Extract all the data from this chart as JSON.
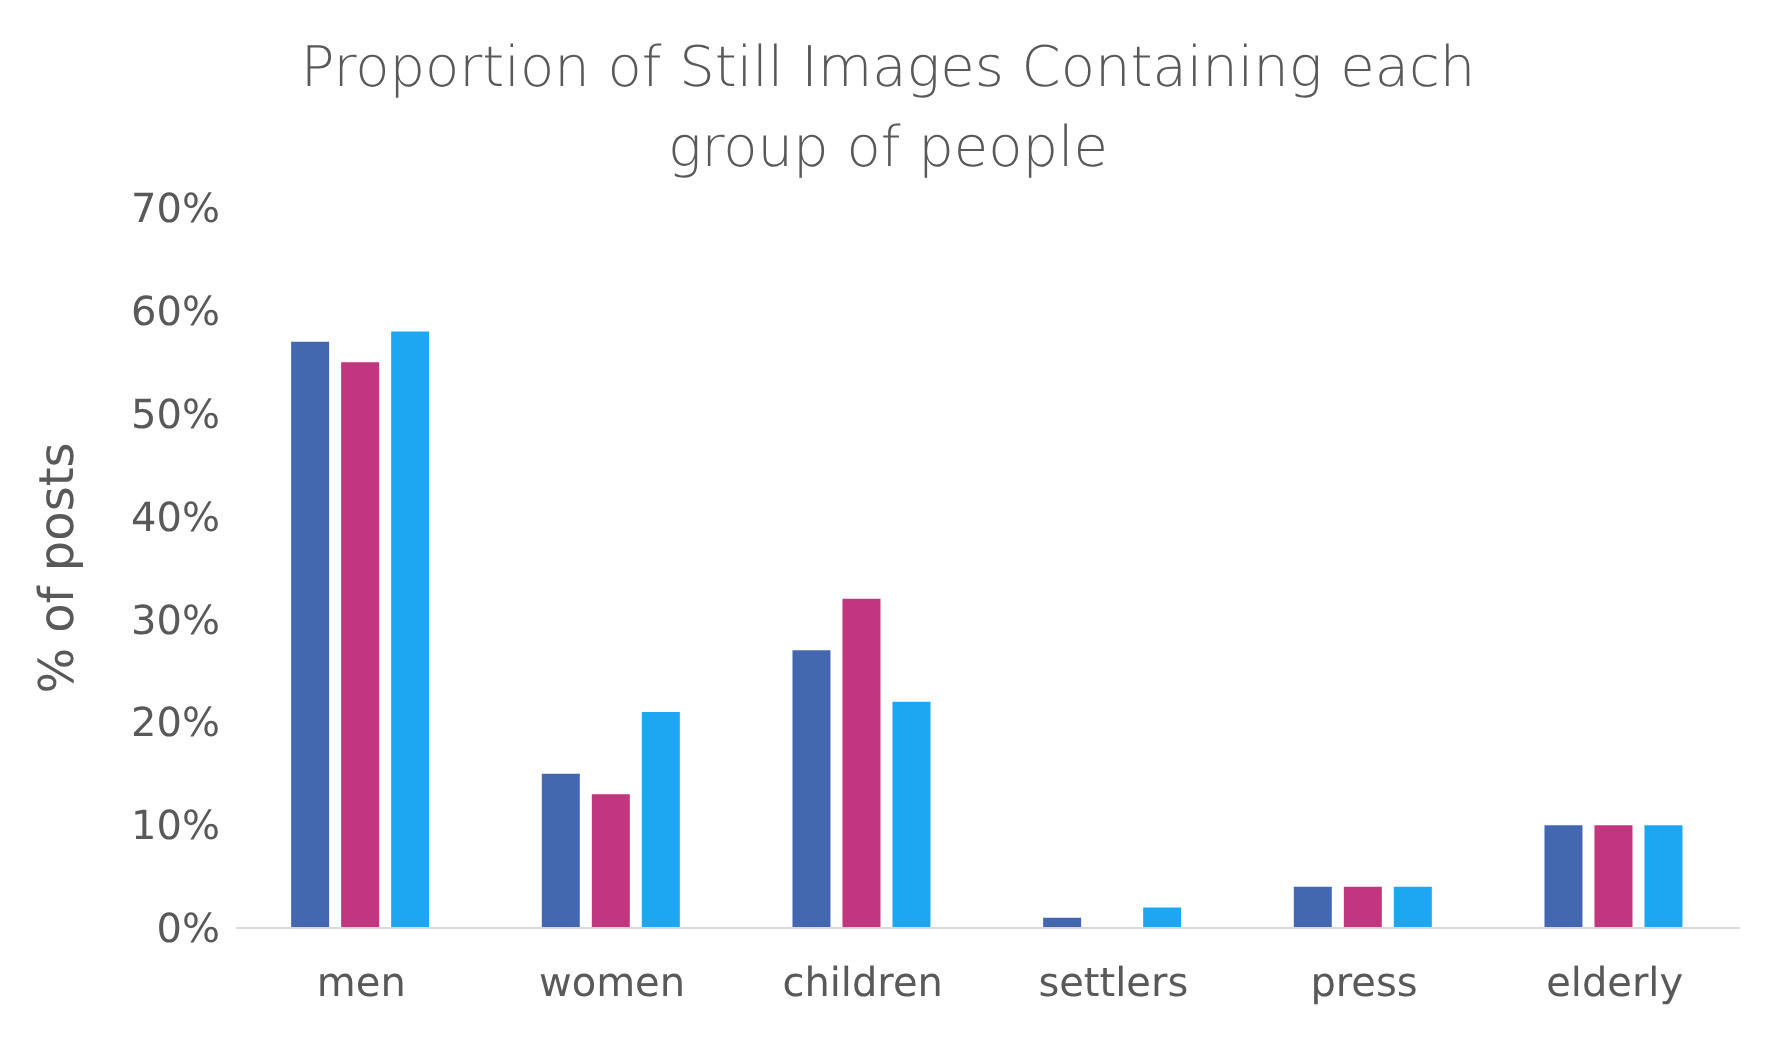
{
  "chart_data": {
    "type": "bar",
    "title": "Proportion of Still Images Containing each group of people",
    "ylabel": "% of posts",
    "categories": [
      "men",
      "women",
      "children",
      "settlers",
      "press",
      "elderly"
    ],
    "series": [
      {
        "color": "#4468b0",
        "values": [
          57,
          15,
          27,
          1,
          4,
          10
        ]
      },
      {
        "color": "#c2357f",
        "values": [
          55,
          13,
          32,
          0,
          4,
          10
        ]
      },
      {
        "color": "#1da6f2",
        "values": [
          58,
          21,
          22,
          2,
          4,
          10
        ]
      }
    ],
    "ylim": [
      0,
      70
    ],
    "yticks": [
      {
        "value": 0,
        "label": "0%"
      },
      {
        "value": 10,
        "label": "10%"
      },
      {
        "value": 20,
        "label": "20%"
      },
      {
        "value": 30,
        "label": "30%"
      },
      {
        "value": 40,
        "label": "40%"
      },
      {
        "value": 50,
        "label": "50%"
      },
      {
        "value": 60,
        "label": "60%"
      },
      {
        "value": 70,
        "label": "70%"
      }
    ]
  }
}
